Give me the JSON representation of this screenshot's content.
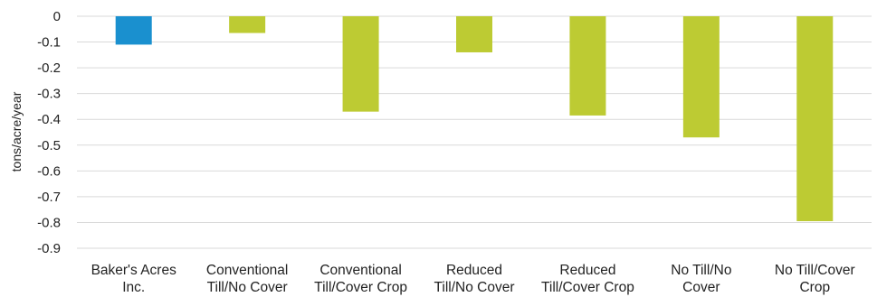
{
  "chart_data": {
    "type": "bar",
    "title": "",
    "xlabel": "",
    "ylabel": "tons/acre/year",
    "ylim": [
      -0.9,
      0
    ],
    "yticks": [
      "0",
      "-0.1",
      "-0.2",
      "-0.3",
      "-0.4",
      "-0.5",
      "-0.6",
      "-0.7",
      "-0.8",
      "-0.9"
    ],
    "grid": true,
    "categories": [
      [
        "Baker's Acres",
        "Inc."
      ],
      [
        "Conventional",
        "Till/No Cover"
      ],
      [
        "Conventional",
        "Till/Cover Crop"
      ],
      [
        "Reduced",
        "Till/No Cover"
      ],
      [
        "Reduced",
        "Till/Cover Crop"
      ],
      [
        "No Till/No",
        "Cover"
      ],
      [
        "No Till/Cover",
        "Crop"
      ]
    ],
    "values": [
      -0.11,
      -0.065,
      -0.37,
      -0.14,
      -0.385,
      -0.47,
      -0.795
    ],
    "colors": [
      "#1a90cf",
      "#bdcb33",
      "#bdcb33",
      "#bdcb33",
      "#bdcb33",
      "#bdcb33",
      "#bdcb33"
    ],
    "gridColor": "#d9d9d9"
  }
}
